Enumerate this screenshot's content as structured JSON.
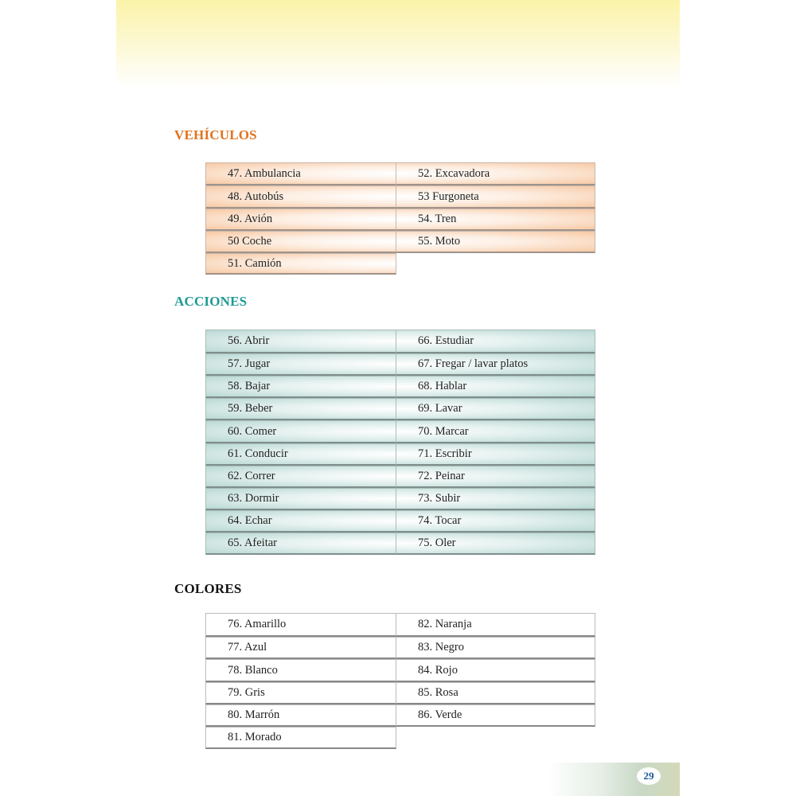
{
  "sections": [
    {
      "title": "VEHÍCULOS",
      "color": "#e0731f",
      "left": [
        "47. Ambulancia",
        "48. Autobús",
        "49. Avión",
        "50 Coche",
        "51. Camión"
      ],
      "right": [
        "52. Excavadora",
        "53 Furgoneta",
        "54. Tren",
        "55. Moto"
      ]
    },
    {
      "title": "ACCIONES",
      "color": "#1f9a94",
      "left": [
        "56. Abrir",
        "57. Jugar",
        "58. Bajar",
        "59. Beber",
        "60. Comer",
        "61. Conducir",
        "62. Correr",
        "63. Dormir",
        "64. Echar",
        "65. Afeitar"
      ],
      "right": [
        "66. Estudiar",
        "67. Fregar / lavar platos",
        "68. Hablar",
        "69. Lavar",
        "70. Marcar",
        "71. Escribir",
        "72. Peinar",
        "73. Subir",
        "74. Tocar",
        "75. Oler"
      ]
    },
    {
      "title": "COLORES",
      "color": "#111111",
      "left": [
        "76. Amarillo",
        "77. Azul",
        "78. Blanco",
        "79. Gris",
        "80. Marrón",
        "81. Morado"
      ],
      "right": [
        "82. Naranja",
        "83. Negro",
        "84. Rojo",
        "85. Rosa",
        "86. Verde"
      ]
    }
  ],
  "page_number": "29"
}
